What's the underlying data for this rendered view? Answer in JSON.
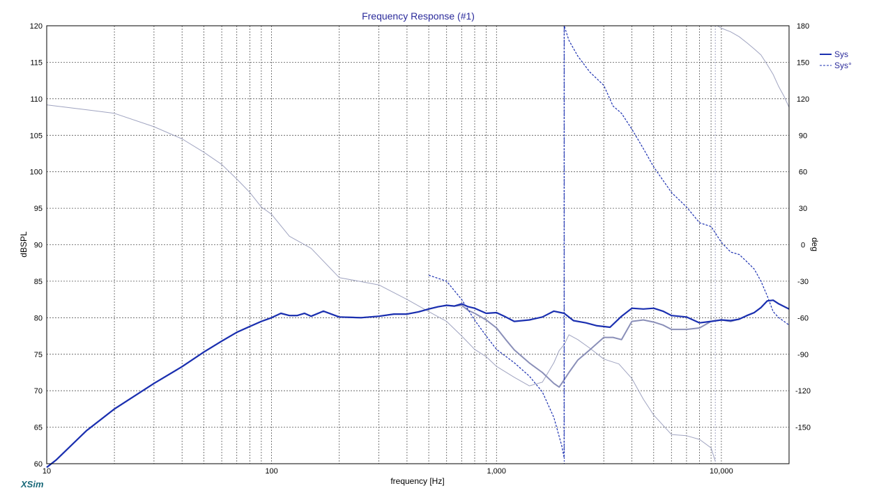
{
  "chart_data": {
    "type": "line",
    "title": "Frequency Response (#1)",
    "xlabel": "frequency [Hz]",
    "ylabel": "dBSPL",
    "y2label": "deg",
    "x_scale": "log",
    "xlim": [
      10,
      20000
    ],
    "ylim": [
      60,
      120
    ],
    "y2lim": [
      -180,
      180
    ],
    "grid": true,
    "legend_position": "top-right",
    "x_tick_labels": [
      {
        "value": 10,
        "label": "10"
      },
      {
        "value": 100,
        "label": "100"
      },
      {
        "value": 1000,
        "label": "1,000"
      },
      {
        "value": 10000,
        "label": "10,000"
      }
    ],
    "y_ticks": [
      60,
      65,
      70,
      75,
      80,
      85,
      90,
      95,
      100,
      105,
      110,
      115,
      120
    ],
    "y2_ticks": [
      -150,
      -120,
      -90,
      -60,
      -30,
      0,
      30,
      60,
      90,
      120,
      150,
      180
    ],
    "brand": "XSim",
    "series": [
      {
        "name": "Sys",
        "axis": "left",
        "color": "#1a2fb0",
        "width": 2.2,
        "dash": "",
        "x": [
          10,
          11,
          15,
          20,
          30,
          40,
          50,
          60,
          70,
          80,
          90,
          100,
          110,
          120,
          130,
          140,
          150,
          170,
          200,
          250,
          300,
          350,
          400,
          450,
          500,
          550,
          600,
          650,
          700,
          750,
          800,
          900,
          1000,
          1100,
          1200,
          1400,
          1600,
          1800,
          2000,
          2200,
          2500,
          2800,
          3200,
          3600,
          4000,
          4500,
          5000,
          5500,
          6000,
          7000,
          8000,
          9000,
          10000,
          11000,
          12000,
          13000,
          14000,
          15000,
          16000,
          17000,
          18000,
          20000
        ],
        "y": [
          59.5,
          60.5,
          64.5,
          67.5,
          71,
          73.3,
          75.3,
          76.8,
          78,
          78.8,
          79.5,
          80,
          80.6,
          80.3,
          80.3,
          80.6,
          80.2,
          80.9,
          80.1,
          80,
          80.2,
          80.5,
          80.5,
          80.8,
          81.2,
          81.5,
          81.7,
          81.6,
          81.9,
          81.5,
          81.3,
          80.6,
          80.7,
          80.1,
          79.5,
          79.7,
          80.1,
          80.9,
          80.6,
          79.6,
          79.3,
          78.9,
          78.7,
          80.2,
          81.3,
          81.2,
          81.3,
          80.9,
          80.3,
          80.1,
          79.3,
          79.5,
          79.7,
          79.6,
          79.8,
          80.3,
          80.7,
          81.4,
          82.3,
          82.4,
          81.9,
          81.2
        ]
      },
      {
        "name": "Sys°",
        "axis": "right",
        "color": "#1a2fb0",
        "width": 1.2,
        "dash": "3,2",
        "x": [
          500,
          600,
          700,
          800,
          900,
          1000,
          1200,
          1400,
          1600,
          1800,
          1950,
          1999,
          2001,
          2100,
          2300,
          2600,
          3000,
          3300,
          3600,
          4000,
          4500,
          5000,
          6000,
          7000,
          8000,
          9000,
          10000,
          11000,
          12000,
          13000,
          14000,
          15000,
          16000,
          17000,
          18000,
          19000,
          20000
        ],
        "y": [
          -25,
          -30,
          -45,
          -62,
          -75,
          -86,
          -97,
          -108,
          -121,
          -142,
          -165,
          -175,
          180,
          168,
          155,
          142,
          131,
          114,
          108,
          95,
          79,
          64,
          43,
          31,
          18,
          15,
          2,
          -6,
          -8,
          -14,
          -20,
          -30,
          -42,
          -55,
          -60,
          -63,
          -66
        ]
      },
      {
        "name": "",
        "axis": "left",
        "color": "#8a8fb8",
        "width": 2.0,
        "dash": "",
        "x": [
          10,
          11,
          15,
          20,
          30,
          40,
          50,
          60,
          70,
          80,
          90,
          100,
          110,
          120,
          130,
          140,
          150,
          170,
          200,
          250,
          300,
          350,
          400,
          450,
          500,
          550,
          600,
          650,
          700,
          750,
          800,
          900,
          1000,
          1100,
          1200,
          1400,
          1600,
          1800,
          1900,
          2000,
          2100,
          2300,
          2600,
          3000,
          3300,
          3600,
          4000,
          4500,
          5000,
          5500,
          6000,
          7000,
          8000,
          9000,
          10000,
          11000,
          12000,
          13000,
          14000,
          15000,
          16000,
          17000,
          18000,
          20000
        ],
        "y": [
          59.5,
          60.5,
          64.5,
          67.5,
          71,
          73.3,
          75.3,
          76.8,
          78,
          78.8,
          79.5,
          80,
          80.6,
          80.3,
          80.3,
          80.6,
          80.2,
          80.9,
          80.1,
          80,
          80.2,
          80.5,
          80.5,
          80.8,
          81.2,
          81.5,
          81.7,
          81.6,
          81.7,
          81,
          80.6,
          79.7,
          78.6,
          77,
          75.6,
          73.8,
          72.5,
          71,
          70.5,
          71.5,
          72.5,
          74.2,
          75.6,
          77.3,
          77.3,
          77,
          79.5,
          79.7,
          79.4,
          79,
          78.4,
          78.4,
          78.6,
          79.5,
          79.7,
          79.5,
          79.8,
          80.3,
          80.7,
          81.4,
          82.3,
          82.4,
          81.9,
          81.2
        ]
      },
      {
        "name": "",
        "axis": "right",
        "color": "#9fa3c0",
        "width": 1.0,
        "dash": "",
        "x": [
          10,
          15,
          20,
          30,
          40,
          50,
          60,
          70,
          80,
          90,
          100,
          120,
          150,
          200,
          300,
          400,
          500,
          600,
          700,
          800,
          900,
          1000,
          1200,
          1400,
          1600,
          1800,
          1900,
          2000,
          2100,
          2300,
          2600,
          3000,
          3500,
          4000,
          4500,
          5000,
          6000,
          7000,
          8000,
          9000,
          9400
        ],
        "y": [
          115,
          111,
          108,
          97,
          87,
          76,
          66,
          54,
          43,
          31,
          25,
          7,
          -3,
          -27,
          -33,
          -45,
          -55,
          -63,
          -75,
          -86,
          -92,
          -100,
          -109,
          -116,
          -113,
          -97,
          -87,
          -82,
          -74,
          -78,
          -85,
          -94,
          -98,
          -110,
          -127,
          -140,
          -156,
          -157,
          -160,
          -167,
          -178
        ]
      },
      {
        "name": "",
        "axis": "right",
        "color": "#9fa3c0",
        "width": 1.0,
        "dash": "",
        "x": [
          9600,
          10000,
          11000,
          12000,
          13000,
          14000,
          15000,
          16000,
          17000,
          18000,
          19000,
          20000
        ],
        "y": [
          180,
          178,
          175,
          171,
          166,
          161,
          156,
          148,
          140,
          130,
          122,
          113
        ]
      }
    ],
    "vlines": [
      {
        "x": 2000,
        "color": "#1a2fb0",
        "dash": "2,2"
      },
      {
        "x": 9400,
        "color": "#9fa3c0",
        "dash": "2,2"
      }
    ]
  }
}
